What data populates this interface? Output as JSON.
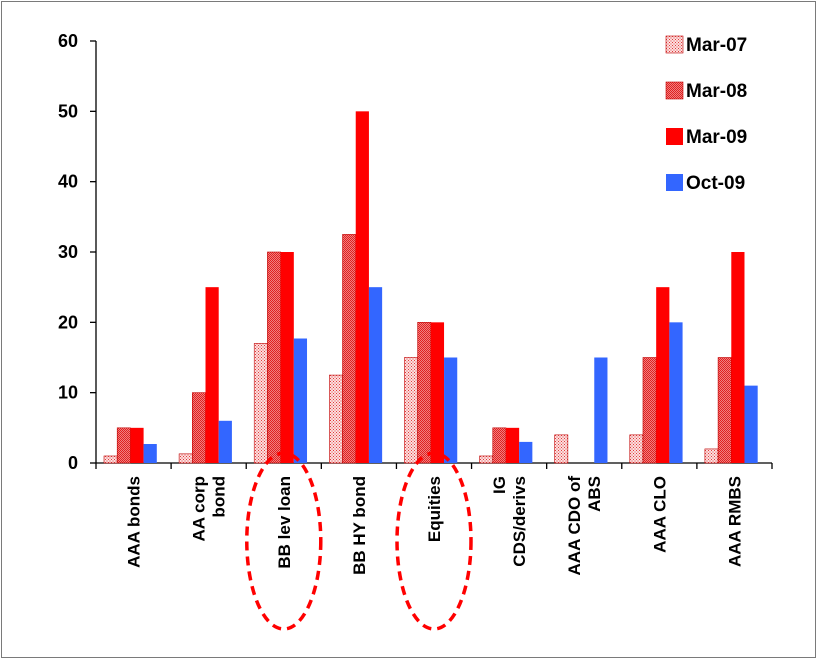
{
  "chart_data": {
    "type": "bar",
    "categories": [
      [
        "AAA bonds"
      ],
      [
        "AA corp",
        "bond"
      ],
      [
        "BB lev loan"
      ],
      [
        "BB HY bond"
      ],
      [
        "Equities"
      ],
      [
        "IG",
        "CDS/derivs"
      ],
      [
        "AAA CDO of",
        "ABS"
      ],
      [
        "AAA CLO"
      ],
      [
        "AAA RMBS"
      ]
    ],
    "series": [
      {
        "name": "Mar-07",
        "values": [
          1,
          1.3,
          17,
          12.5,
          15,
          1,
          4,
          4,
          2
        ]
      },
      {
        "name": "Mar-08",
        "values": [
          5,
          10,
          30,
          32.5,
          20,
          5,
          0,
          15,
          15
        ]
      },
      {
        "name": "Mar-09",
        "values": [
          5,
          25,
          30,
          50,
          20,
          5,
          0,
          25,
          30
        ]
      },
      {
        "name": "Oct-09",
        "values": [
          2.7,
          6,
          17.7,
          25,
          15,
          3,
          15,
          20,
          11
        ]
      }
    ],
    "ylim": [
      0,
      60
    ],
    "yticks": [
      "0",
      "10",
      "20",
      "30",
      "40",
      "50",
      "60"
    ],
    "legend_position": "top-right",
    "colors": {
      "Mar-07": "#e83a3a",
      "Mar-08": "#e83a3a",
      "Mar-09": "#ff0000",
      "Oct-09": "#3366ff"
    },
    "highlighted_categories": [
      "BB lev loan",
      "Equities"
    ],
    "highlight_color": "#ff0000"
  }
}
